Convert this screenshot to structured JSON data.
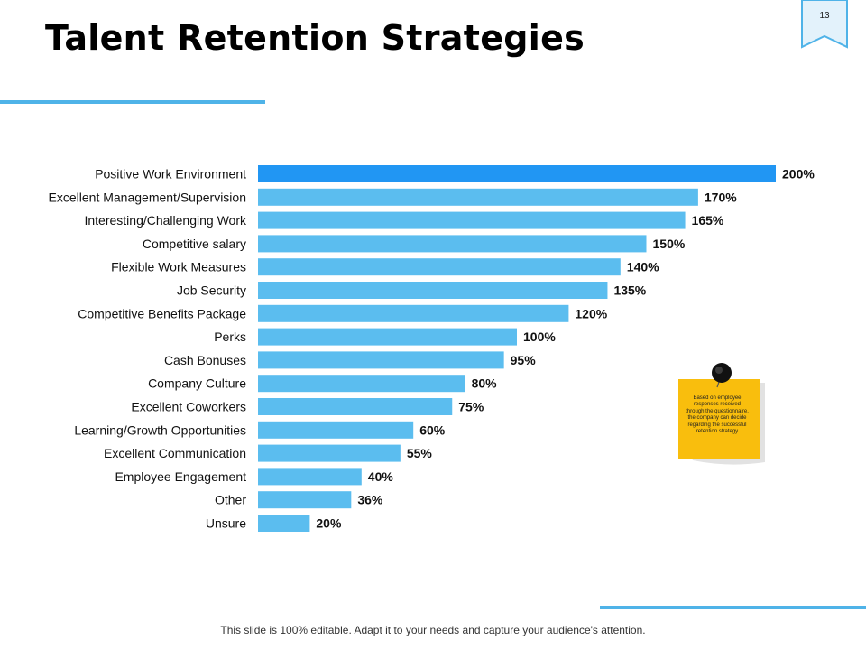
{
  "slide": {
    "title": "Talent Retention Strategies",
    "page_number": "13",
    "footer": "This slide is 100% editable. Adapt it to your needs and capture your audience's attention.",
    "note": "Based on employee responses received through the questionnaire, the company can decide regarding the successful retention strategy"
  },
  "colors": {
    "accent": "#4fb3e8",
    "bar": "#5bbdef",
    "bar_highlight": "#2196f3",
    "note_yellow": "#f9be0d",
    "flag_fill": "#e3f2fb"
  },
  "chart_data": {
    "type": "bar",
    "orientation": "horizontal",
    "categories": [
      "Positive Work Environment",
      "Excellent Management/Supervision",
      "Interesting/Challenging Work",
      "Competitive salary",
      "Flexible Work Measures",
      "Job Security",
      "Competitive Benefits Package",
      "Perks",
      "Cash Bonuses",
      "Company Culture",
      "Excellent Coworkers",
      "Learning/Growth Opportunities",
      "Excellent Communication",
      "Employee Engagement",
      "Other",
      "Unsure"
    ],
    "values": [
      200,
      170,
      165,
      150,
      140,
      135,
      120,
      100,
      95,
      80,
      75,
      60,
      55,
      40,
      36,
      20
    ],
    "value_labels": [
      "200%",
      "170%",
      "165%",
      "150%",
      "140%",
      "135%",
      "120%",
      "100%",
      "95%",
      "80%",
      "75%",
      "60%",
      "55%",
      "40%",
      "36%",
      "20%"
    ],
    "highlight_index": 0,
    "xlim": [
      0,
      200
    ],
    "title": "",
    "xlabel": "",
    "ylabel": "",
    "grid": false,
    "legend": "none"
  }
}
